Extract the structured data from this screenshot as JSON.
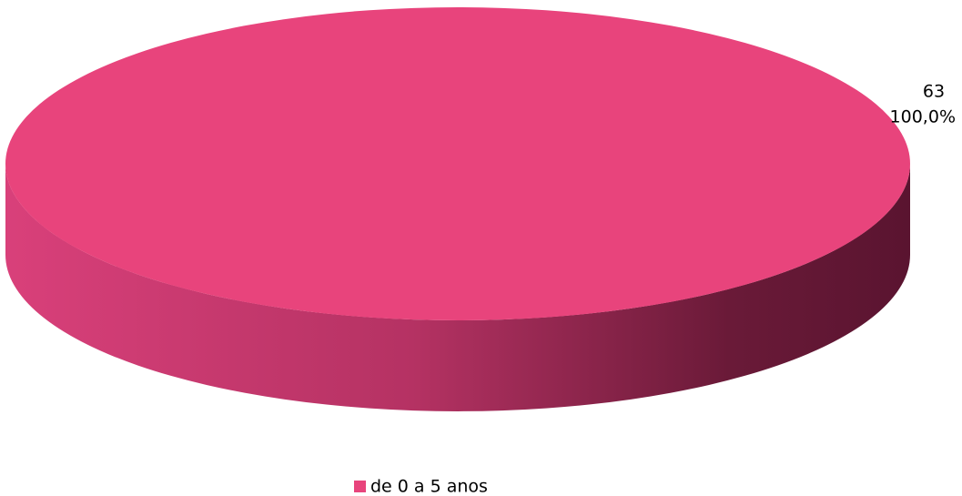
{
  "chart_data": {
    "type": "pie3d",
    "categories": [
      "de 0 a 5 anos"
    ],
    "values": [
      63
    ],
    "percent_values": [
      100
    ],
    "percent_labels": [
      "100,0%"
    ],
    "colors": [
      "#e8447c"
    ],
    "legend": "bottom"
  }
}
